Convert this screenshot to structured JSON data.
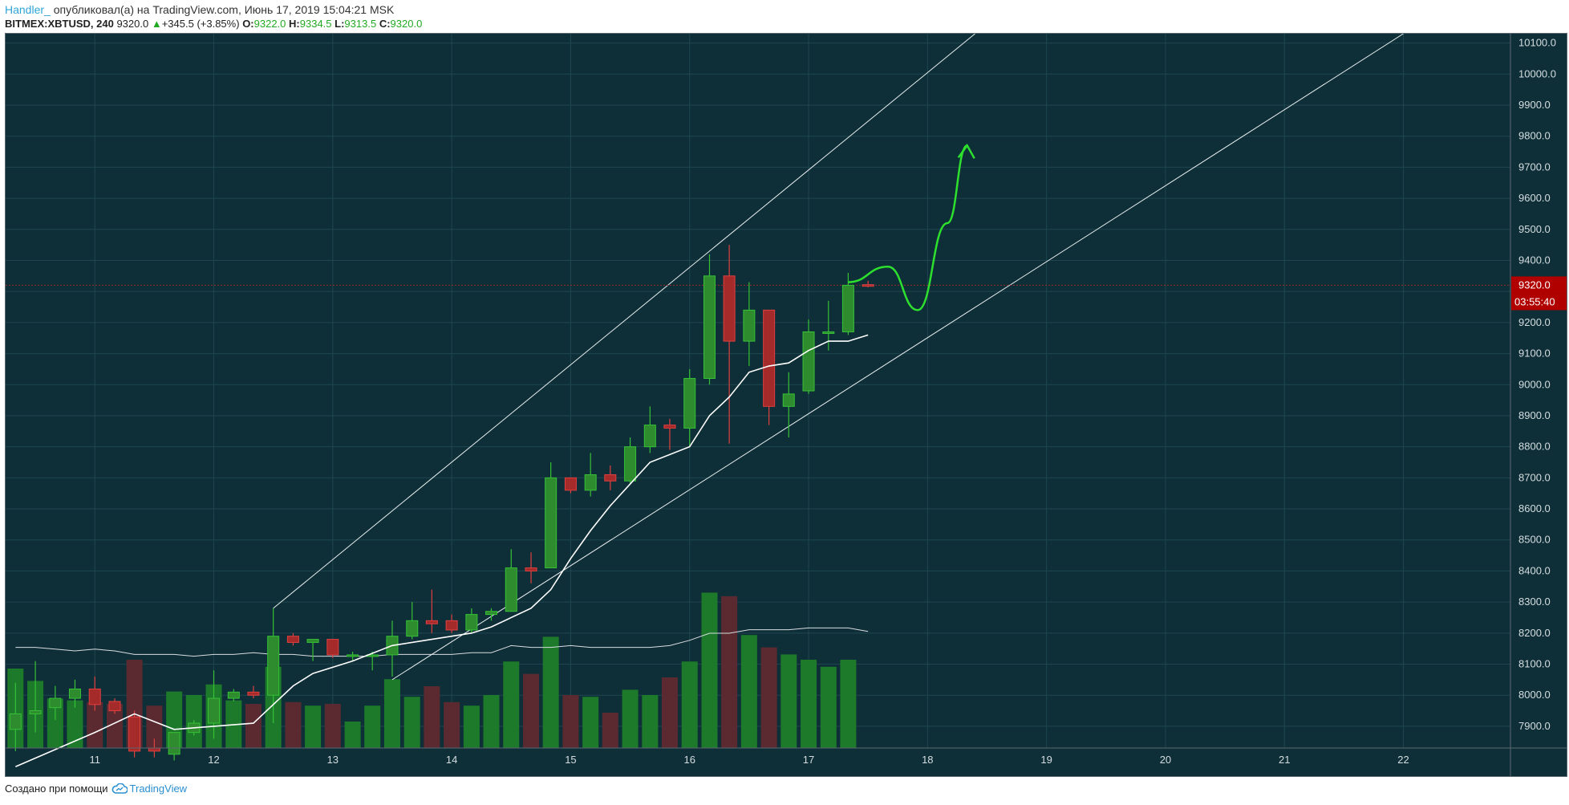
{
  "header": {
    "author": "Handler_",
    "published_text": "опубликовал(а) на TradingView.com, Июнь 17, 2019 15:04:21 MSK"
  },
  "symbol_bar": {
    "symbol": "BITMEX:XBTUSD, 240",
    "last": "9320.0",
    "change": "+345.5 (+3.85%)",
    "o_label": "O:",
    "o_value": "9322.0",
    "h_label": "H:",
    "h_value": "9334.5",
    "l_label": "L:",
    "l_value": "9313.5",
    "c_label": "C:",
    "c_value": "9320.0"
  },
  "footer": {
    "created_with": "Создано при помощи",
    "brand": "TradingView"
  },
  "colors": {
    "background": "#0f2f38",
    "grid": "#1f4650",
    "up": "#2e8b2e",
    "up_wick": "#36c136",
    "down": "#a52a2a",
    "down_wick": "#e04040",
    "volume_up": "#1c7a2a",
    "volume_down": "#5a2a30",
    "ma": "#ffffff",
    "projection": "#2ee02e",
    "price_badge": "#b00000"
  },
  "chart_data": {
    "type": "candlestick",
    "symbol": "BITMEX:XBTUSD",
    "timeframe": "240",
    "ylim": [
      7830,
      10130
    ],
    "y_ticks": [
      7900,
      8000,
      8100,
      8200,
      8300,
      8400,
      8500,
      8600,
      8700,
      8800,
      8900,
      9000,
      9100,
      9200,
      9300,
      9400,
      9500,
      9600,
      9700,
      9800,
      9900,
      10000,
      10100
    ],
    "x_ticks": [
      "11",
      "12",
      "13",
      "14",
      "15",
      "16",
      "17",
      "18",
      "19",
      "20",
      "21",
      "22"
    ],
    "x_range_days": [
      10.25,
      22.9
    ],
    "current_price": "9320.0",
    "countdown": "03:55:40",
    "candles": [
      {
        "t": 10.333,
        "o": 7890,
        "h": 8040,
        "l": 7820,
        "c": 7940
      },
      {
        "t": 10.5,
        "o": 7940,
        "h": 8110,
        "l": 7880,
        "c": 7950
      },
      {
        "t": 10.667,
        "o": 7960,
        "h": 8030,
        "l": 7920,
        "c": 7990
      },
      {
        "t": 10.833,
        "o": 7990,
        "h": 8050,
        "l": 7960,
        "c": 8020
      },
      {
        "t": 11.0,
        "o": 8020,
        "h": 8060,
        "l": 7950,
        "c": 7970
      },
      {
        "t": 11.167,
        "o": 7980,
        "h": 7990,
        "l": 7940,
        "c": 7950
      },
      {
        "t": 11.333,
        "o": 7930,
        "h": 7950,
        "l": 7800,
        "c": 7820
      },
      {
        "t": 11.5,
        "o": 7830,
        "h": 7860,
        "l": 7800,
        "c": 7820
      },
      {
        "t": 11.667,
        "o": 7810,
        "h": 7880,
        "l": 7790,
        "c": 7880
      },
      {
        "t": 11.833,
        "o": 7880,
        "h": 7920,
        "l": 7870,
        "c": 7910
      },
      {
        "t": 12.0,
        "o": 7910,
        "h": 8080,
        "l": 7860,
        "c": 7990
      },
      {
        "t": 12.167,
        "o": 7990,
        "h": 8020,
        "l": 7980,
        "c": 8010
      },
      {
        "t": 12.333,
        "o": 8010,
        "h": 8030,
        "l": 7990,
        "c": 8000
      },
      {
        "t": 12.5,
        "o": 8000,
        "h": 8280,
        "l": 7910,
        "c": 8190
      },
      {
        "t": 12.667,
        "o": 8190,
        "h": 8200,
        "l": 8160,
        "c": 8170
      },
      {
        "t": 12.833,
        "o": 8170,
        "h": 8180,
        "l": 8110,
        "c": 8180
      },
      {
        "t": 13.0,
        "o": 8180,
        "h": 8180,
        "l": 8120,
        "c": 8130
      },
      {
        "t": 13.167,
        "o": 8130,
        "h": 8140,
        "l": 8110,
        "c": 8130
      },
      {
        "t": 13.333,
        "o": 8130,
        "h": 8140,
        "l": 8080,
        "c": 8130
      },
      {
        "t": 13.5,
        "o": 8130,
        "h": 8240,
        "l": 8060,
        "c": 8190
      },
      {
        "t": 13.667,
        "o": 8190,
        "h": 8300,
        "l": 8180,
        "c": 8240
      },
      {
        "t": 13.833,
        "o": 8240,
        "h": 8340,
        "l": 8200,
        "c": 8230
      },
      {
        "t": 14.0,
        "o": 8240,
        "h": 8260,
        "l": 8200,
        "c": 8210
      },
      {
        "t": 14.167,
        "o": 8210,
        "h": 8280,
        "l": 8200,
        "c": 8260
      },
      {
        "t": 14.333,
        "o": 8260,
        "h": 8280,
        "l": 8240,
        "c": 8270
      },
      {
        "t": 14.5,
        "o": 8270,
        "h": 8470,
        "l": 8270,
        "c": 8410
      },
      {
        "t": 14.667,
        "o": 8410,
        "h": 8460,
        "l": 8360,
        "c": 8400
      },
      {
        "t": 14.833,
        "o": 8410,
        "h": 8750,
        "l": 8410,
        "c": 8700
      },
      {
        "t": 15.0,
        "o": 8700,
        "h": 8700,
        "l": 8650,
        "c": 8660
      },
      {
        "t": 15.167,
        "o": 8660,
        "h": 8780,
        "l": 8640,
        "c": 8710
      },
      {
        "t": 15.333,
        "o": 8710,
        "h": 8740,
        "l": 8660,
        "c": 8690
      },
      {
        "t": 15.5,
        "o": 8690,
        "h": 8830,
        "l": 8680,
        "c": 8800
      },
      {
        "t": 15.667,
        "o": 8800,
        "h": 8930,
        "l": 8780,
        "c": 8870
      },
      {
        "t": 15.833,
        "o": 8870,
        "h": 8890,
        "l": 8790,
        "c": 8860
      },
      {
        "t": 16.0,
        "o": 8860,
        "h": 9050,
        "l": 8800,
        "c": 9020
      },
      {
        "t": 16.167,
        "o": 9020,
        "h": 9420,
        "l": 9000,
        "c": 9350
      },
      {
        "t": 16.333,
        "o": 9350,
        "h": 9450,
        "l": 8810,
        "c": 9140
      },
      {
        "t": 16.5,
        "o": 9140,
        "h": 9330,
        "l": 9060,
        "c": 9240
      },
      {
        "t": 16.667,
        "o": 9240,
        "h": 9240,
        "l": 8870,
        "c": 8930
      },
      {
        "t": 16.833,
        "o": 8930,
        "h": 9040,
        "l": 8830,
        "c": 8970
      },
      {
        "t": 17.0,
        "o": 8980,
        "h": 9210,
        "l": 8970,
        "c": 9170
      },
      {
        "t": 17.167,
        "o": 9170,
        "h": 9270,
        "l": 9110,
        "c": 9170
      },
      {
        "t": 17.333,
        "o": 9170,
        "h": 9360,
        "l": 9160,
        "c": 9320
      },
      {
        "t": 17.5,
        "o": 9322,
        "h": 9334.5,
        "l": 9313.5,
        "c": 9320
      }
    ],
    "volumes": [
      0.45,
      0.38,
      0.28,
      0.27,
      0.26,
      0.25,
      0.5,
      0.24,
      0.32,
      0.3,
      0.36,
      0.27,
      0.25,
      0.46,
      0.26,
      0.24,
      0.25,
      0.15,
      0.24,
      0.39,
      0.29,
      0.35,
      0.26,
      0.24,
      0.3,
      0.49,
      0.42,
      0.63,
      0.3,
      0.29,
      0.2,
      0.33,
      0.3,
      0.4,
      0.49,
      0.88,
      0.86,
      0.64,
      0.57,
      0.53,
      0.5,
      0.46,
      0.5,
      0.0
    ],
    "ma_price": [
      [
        10.333,
        7770
      ],
      [
        11.0,
        7880
      ],
      [
        11.333,
        7940
      ],
      [
        11.667,
        7890
      ],
      [
        12.0,
        7900
      ],
      [
        12.333,
        7910
      ],
      [
        12.667,
        8030
      ],
      [
        12.833,
        8070
      ],
      [
        13.167,
        8110
      ],
      [
        13.5,
        8160
      ],
      [
        13.833,
        8180
      ],
      [
        14.167,
        8200
      ],
      [
        14.333,
        8220
      ],
      [
        14.667,
        8280
      ],
      [
        14.833,
        8340
      ],
      [
        15.0,
        8440
      ],
      [
        15.167,
        8530
      ],
      [
        15.333,
        8610
      ],
      [
        15.5,
        8680
      ],
      [
        15.667,
        8750
      ],
      [
        16.0,
        8800
      ],
      [
        16.167,
        8900
      ],
      [
        16.333,
        8960
      ],
      [
        16.5,
        9040
      ],
      [
        16.667,
        9060
      ],
      [
        16.833,
        9070
      ],
      [
        17.0,
        9110
      ],
      [
        17.167,
        9140
      ],
      [
        17.333,
        9140
      ],
      [
        17.5,
        9160
      ]
    ],
    "ma_volume": [
      0.57,
      0.57,
      0.56,
      0.55,
      0.56,
      0.55,
      0.53,
      0.53,
      0.53,
      0.52,
      0.53,
      0.53,
      0.54,
      0.53,
      0.53,
      0.52,
      0.52,
      0.52,
      0.52,
      0.53,
      0.53,
      0.53,
      0.53,
      0.54,
      0.54,
      0.58,
      0.57,
      0.57,
      0.58,
      0.57,
      0.57,
      0.57,
      0.57,
      0.58,
      0.61,
      0.65,
      0.65,
      0.67,
      0.67,
      0.67,
      0.68,
      0.68,
      0.68,
      0.66
    ],
    "trend_lines": [
      {
        "from": [
          12.5,
          8280
        ],
        "to": [
          16.167,
          9430
        ],
        "extend": true
      },
      {
        "from": [
          13.5,
          8050
        ],
        "to": [
          22.0,
          10130
        ],
        "extend": false
      }
    ],
    "projection_path": [
      [
        17.333,
        9330
      ],
      [
        17.667,
        9380
      ],
      [
        17.917,
        9240
      ],
      [
        18.167,
        9520
      ],
      [
        18.333,
        9770
      ]
    ],
    "dashed_price_level": 9320
  }
}
